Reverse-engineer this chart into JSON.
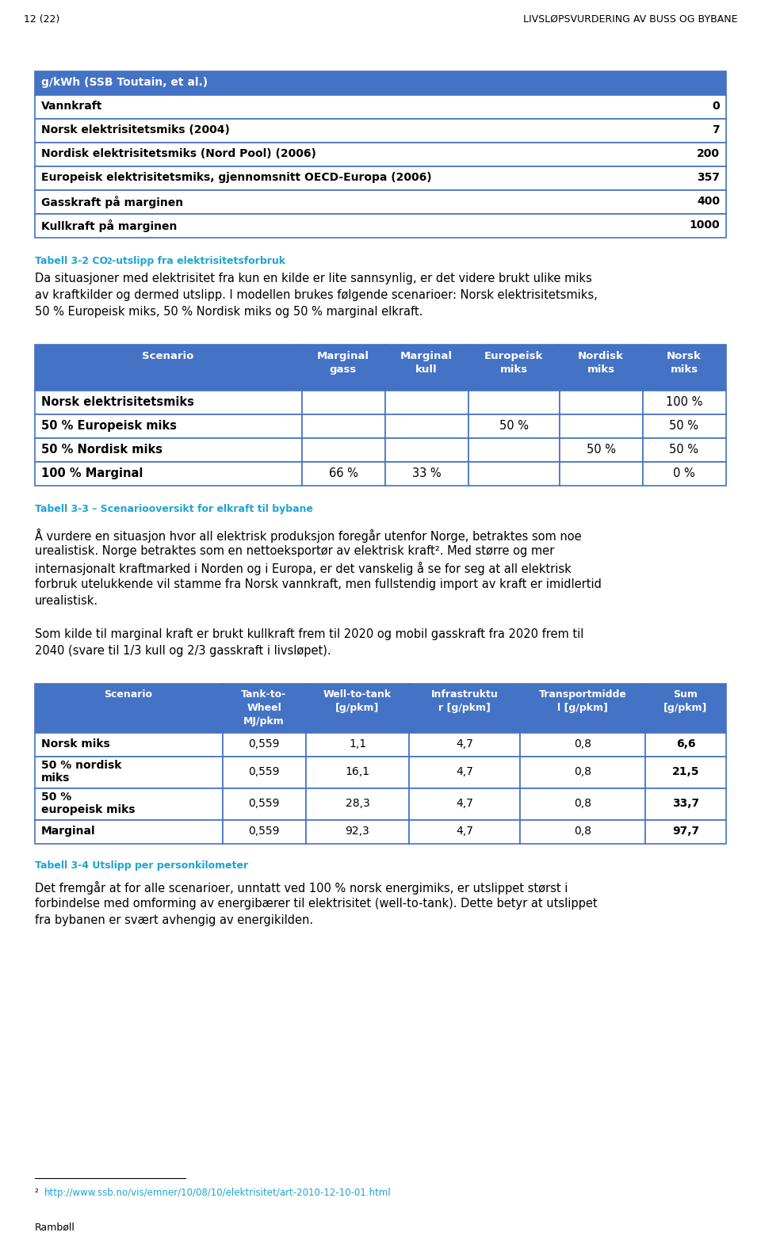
{
  "page_header_left": "12 (22)",
  "page_header_right": "LIVSLØPSVURDERING AV BUSS OG BYBANE",
  "table1_header": "g/kWh (SSB Toutain, et al.)",
  "table1_rows": [
    [
      "Vannkraft",
      "0"
    ],
    [
      "Norsk elektrisitetsmiks (2004)",
      "7"
    ],
    [
      "Nordisk elektrisitetsmiks (Nord Pool) (2006)",
      "200"
    ],
    [
      "Europeisk elektrisitetsmiks, gjennomsnitt OECD-Europa (2006)",
      "357"
    ],
    [
      "Gasskraft på marginen",
      "400"
    ],
    [
      "Kullkraft på marginen",
      "1000"
    ]
  ],
  "table2_header": [
    "Scenario",
    "Marginal\ngass",
    "Marginal\nkull",
    "Europeisk\nmiks",
    "Nordisk\nmiks",
    "Norsk\nmiks"
  ],
  "table2_rows": [
    [
      "Norsk elektrisitetsmiks",
      "",
      "",
      "",
      "",
      "100 %"
    ],
    [
      "50 % Europeisk miks",
      "",
      "",
      "50 %",
      "",
      "50 %"
    ],
    [
      "50 % Nordisk miks",
      "",
      "",
      "",
      "50 %",
      "50 %"
    ],
    [
      "100 % Marginal",
      "66 %",
      "33 %",
      "",
      "",
      "0 %"
    ]
  ],
  "table2_caption": "Tabell 3-3 – Scenariooversikt for elkraft til bybane",
  "table3_header": [
    "Scenario",
    "Tank-to-\nWheel\nMJ/pkm",
    "Well-to-tank\n[g/pkm]",
    "Infrastruktu\nr [g/pkm]",
    "Transportmidde\nl [g/pkm]",
    "Sum\n[g/pkm]"
  ],
  "table3_rows": [
    [
      "Norsk miks",
      "0,559",
      "1,1",
      "4,7",
      "0,8",
      "6,6"
    ],
    [
      "50 % nordisk\nmiks",
      "0,559",
      "16,1",
      "4,7",
      "0,8",
      "21,5"
    ],
    [
      "50 %\neuropeisk miks",
      "0,559",
      "28,3",
      "4,7",
      "0,8",
      "33,7"
    ],
    [
      "Marginal",
      "0,559",
      "92,3",
      "4,7",
      "0,8",
      "97,7"
    ]
  ],
  "table3_caption": "Tabell 3-4 Utslipp per personkilometer",
  "header_bg": "#4472C4",
  "border_color": "#4472C4",
  "caption_color": "#1DA4D0",
  "footnote_url": "http://www.ssb.no/vis/emner/10/08/10/elektrisitet/art-2010-12-10-01.html"
}
